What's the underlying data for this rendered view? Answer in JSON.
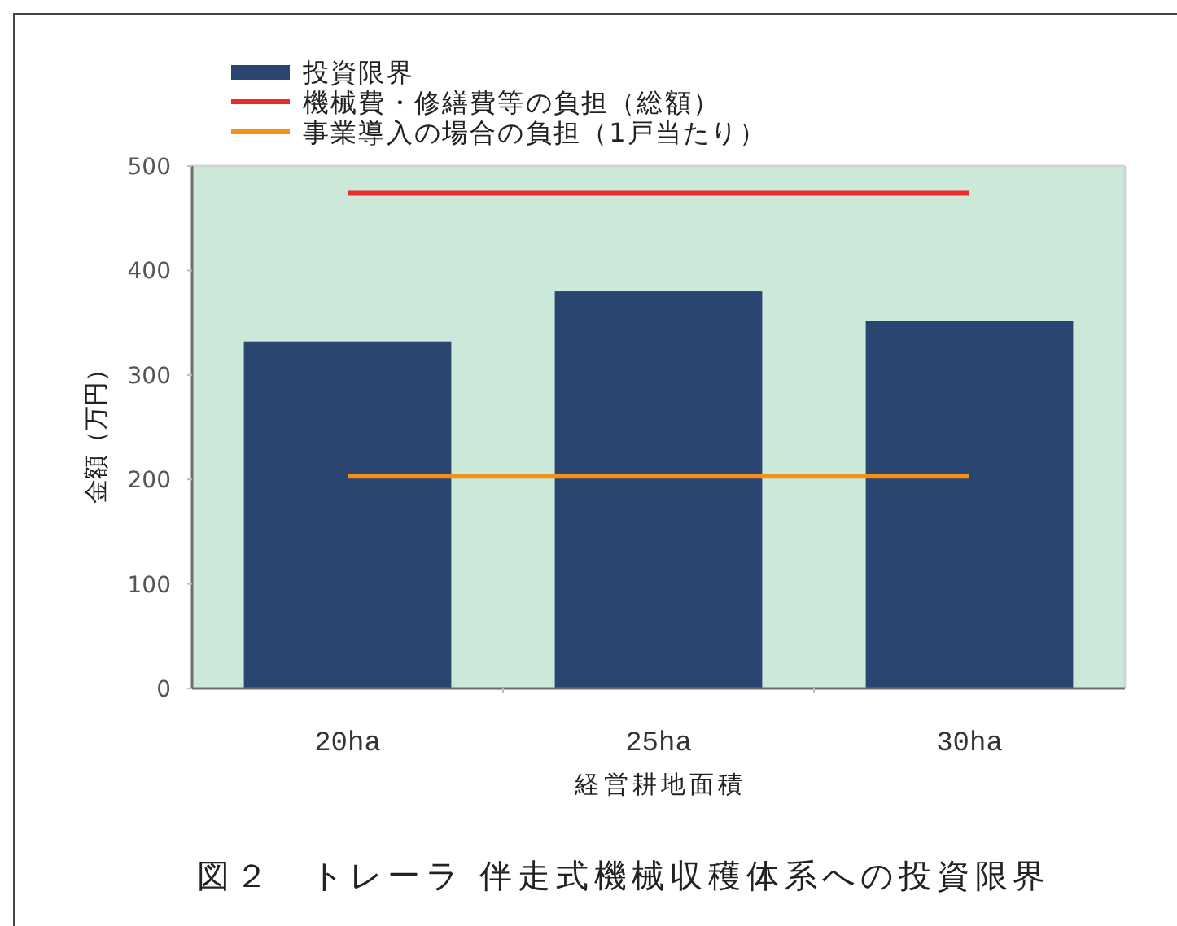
{
  "chart_data": {
    "type": "bar",
    "title": "図２　トレーラ 伴走式機械収穫体系への投資限界",
    "xlabel": "経営耕地面積",
    "ylabel": "金額（万円）",
    "categories": [
      "20ha",
      "25ha",
      "30ha"
    ],
    "series": [
      {
        "name": "投資限界",
        "color": "#2b4571",
        "values": [
          332,
          380,
          352
        ]
      },
      {
        "name": "機械費・修繕費等の負担（総額）",
        "type": "line",
        "color": "#ee2b2b",
        "values": [
          474,
          474,
          474
        ]
      },
      {
        "name": "事業導入の場合の負担（1戸当たり）",
        "type": "line",
        "color": "#f39019",
        "values": [
          203,
          203,
          203
        ]
      }
    ],
    "ylim": [
      0,
      500
    ],
    "yticks": [
      0,
      100,
      200,
      300,
      400,
      500
    ],
    "legend": "top left"
  }
}
